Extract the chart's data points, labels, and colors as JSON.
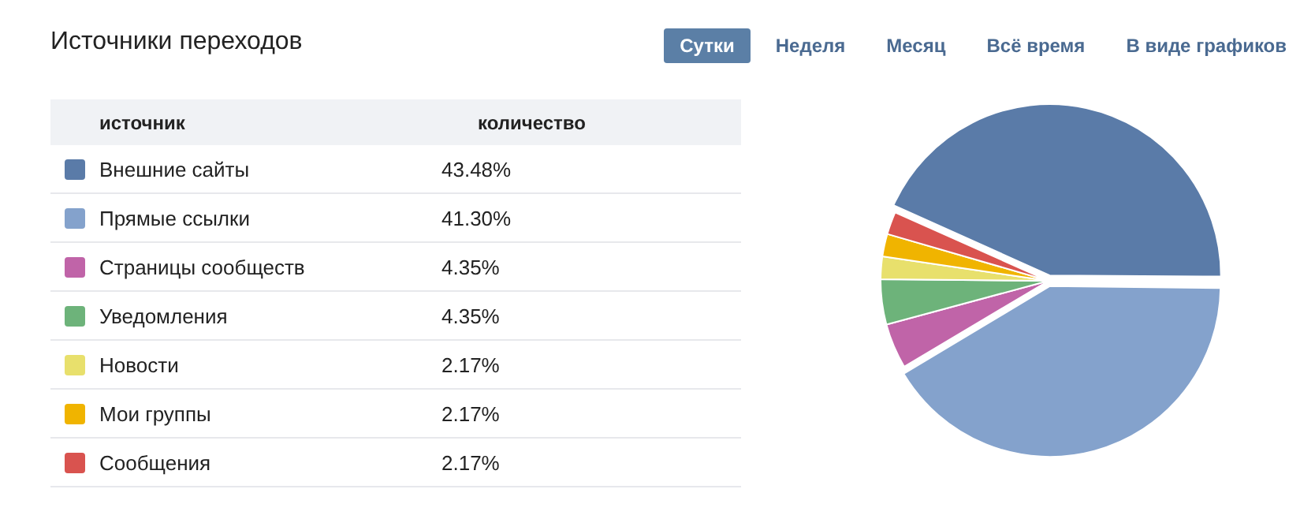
{
  "chart_data": {
    "type": "pie",
    "title": "Источники переходов",
    "categories": [
      "Внешние сайты",
      "Прямые ссылки",
      "Страницы сообществ",
      "Уведомления",
      "Новости",
      "Мои группы",
      "Сообщения"
    ],
    "values": [
      43.48,
      41.3,
      4.35,
      4.35,
      2.17,
      2.17,
      2.17
    ],
    "colors": [
      "#5a7ba8",
      "#84a2cc",
      "#c064a8",
      "#6db37a",
      "#e8e06c",
      "#f0b400",
      "#d9534f"
    ],
    "annotations": [
      "источник",
      "количество",
      "Сутки",
      "Неделя",
      "Месяц",
      "Всё время",
      "В виде графиков"
    ],
    "value_labels": [
      "43.48%",
      "41.30%",
      "4.35%",
      "4.35%",
      "2.17%",
      "2.17%",
      "2.17%"
    ],
    "legend": "left"
  }
}
